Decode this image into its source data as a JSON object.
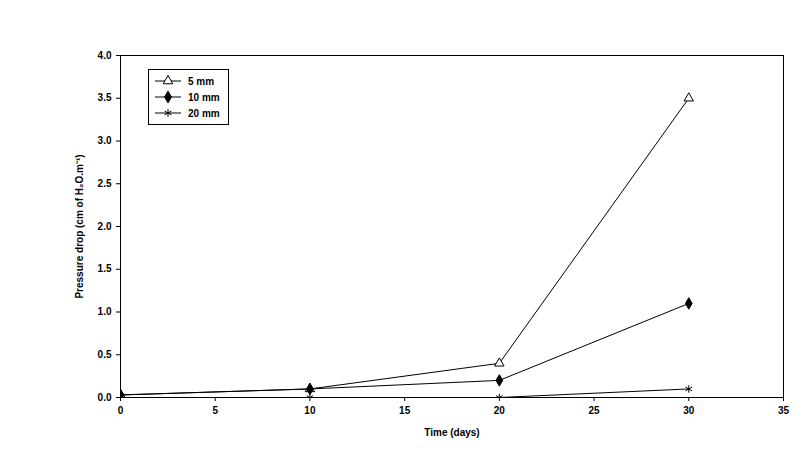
{
  "chart_data": {
    "type": "line",
    "x_label": "Time (days)",
    "y_label": "Pressure drop (cm of H₂O.m⁻¹)",
    "x": [
      0,
      10,
      20,
      30
    ],
    "series": [
      {
        "name": "5 mm",
        "color": "#000000",
        "marker": "triangle",
        "values": [
          0.03,
          0.1,
          0.4,
          3.5
        ]
      },
      {
        "name": "10 mm",
        "color": "#000000",
        "marker": "diamond",
        "values": [
          0.03,
          0.1,
          0.2,
          1.1
        ]
      },
      {
        "name": "20 mm",
        "color": "#000000",
        "marker": "asterisk",
        "values": [
          0,
          0,
          0,
          0.1
        ]
      }
    ],
    "xlim": [
      0,
      35
    ],
    "xticks": [
      0,
      5,
      10,
      15,
      20,
      25,
      30,
      35
    ],
    "ylim": [
      0,
      4
    ],
    "yticks": [
      {
        "value": 0,
        "label": "0.0"
      },
      0.5,
      {
        "value": 1,
        "label": "1.0"
      },
      1.5,
      {
        "value": 2,
        "label": "2.0"
      },
      2.5,
      {
        "value": 3,
        "label": "3.0"
      },
      3.5,
      {
        "value": 4,
        "label": "4.0"
      }
    ],
    "grid": false,
    "legend": "top-left"
  }
}
